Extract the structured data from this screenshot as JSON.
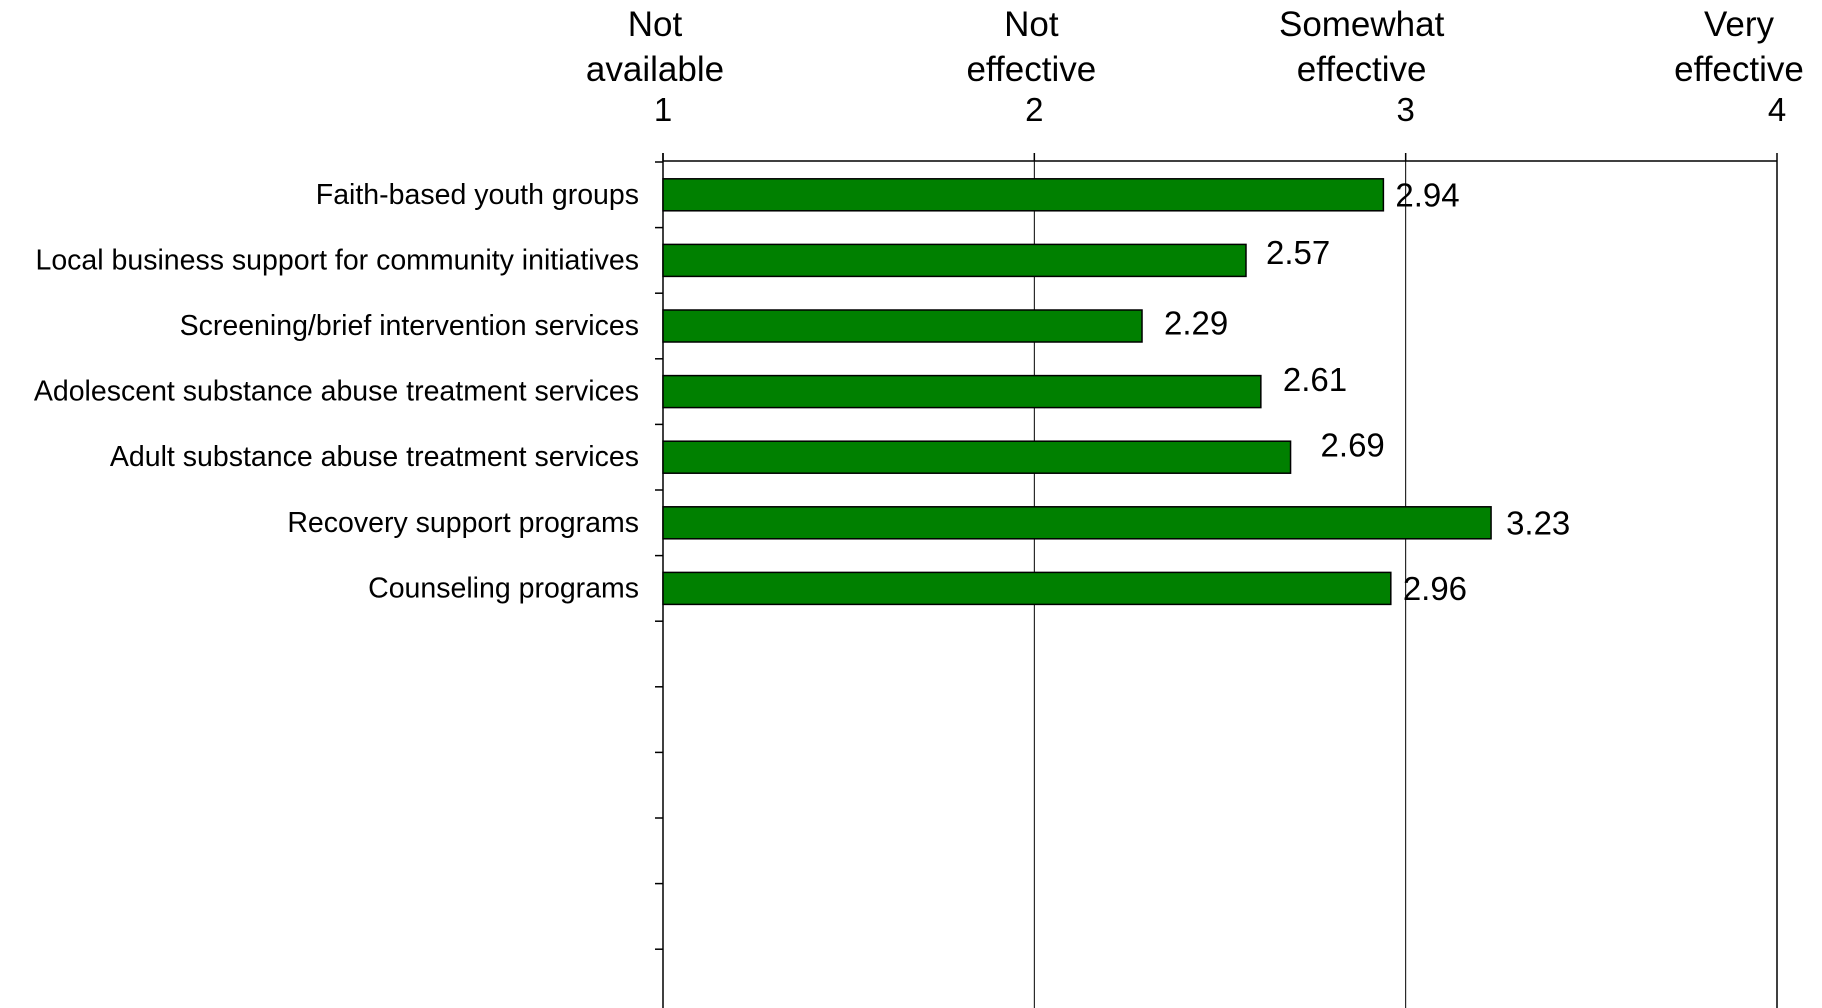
{
  "chart_data": {
    "type": "bar",
    "orientation": "horizontal",
    "title": "",
    "xlabel": "",
    "ylabel": "",
    "xlim": [
      1,
      4
    ],
    "ticks": [
      {
        "value": 1,
        "label": "1",
        "scale_text": [
          "Not",
          "available"
        ]
      },
      {
        "value": 2,
        "label": "2",
        "scale_text": [
          "Not",
          "effective"
        ]
      },
      {
        "value": 3,
        "label": "3",
        "scale_text": [
          "Somewhat",
          "effective"
        ]
      },
      {
        "value": 4,
        "label": "4",
        "scale_text": [
          "Very",
          "effective"
        ]
      }
    ],
    "categories": [
      "Faith-based youth groups",
      "Local business support for community initiatives",
      "Screening/brief intervention services",
      "Adolescent substance abuse treatment services",
      "Adult substance abuse treatment services",
      "Recovery support programs",
      "Counseling programs"
    ],
    "values": [
      2.94,
      2.57,
      2.29,
      2.61,
      2.69,
      3.23,
      2.96
    ],
    "value_labels": [
      "2.94",
      "2.57",
      "2.29",
      "2.61",
      "2.69",
      "3.23",
      "2.96"
    ],
    "bar_color": "#008000",
    "bar_outline_color": "#000000",
    "grid": true,
    "legend": "none"
  }
}
